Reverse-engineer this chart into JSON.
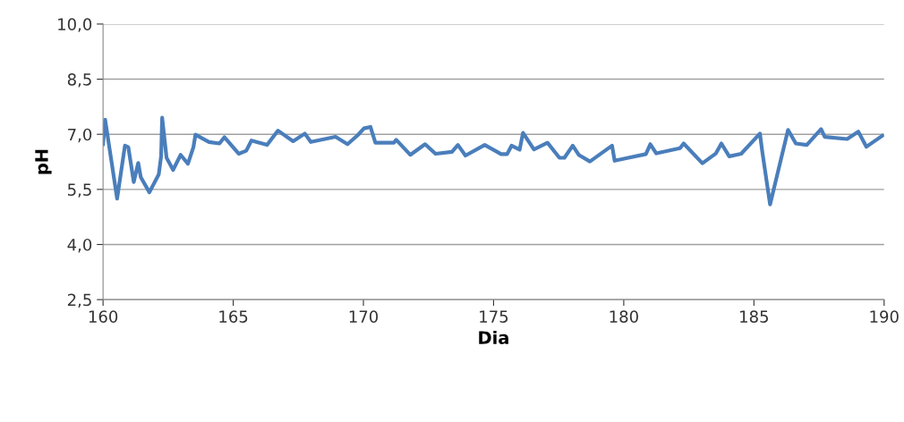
{
  "chart_data": {
    "type": "line",
    "xlabel": "Dia",
    "ylabel": "pH",
    "x": [
      160.0,
      160.08,
      160.54,
      160.84,
      160.97,
      161.18,
      161.35,
      161.45,
      161.78,
      162.14,
      162.23,
      162.27,
      162.44,
      162.69,
      162.98,
      163.26,
      163.47,
      163.55,
      164.07,
      164.47,
      164.66,
      165.21,
      165.5,
      165.7,
      166.3,
      166.72,
      167.3,
      167.75,
      167.98,
      168.93,
      169.39,
      169.79,
      170.02,
      170.27,
      170.46,
      171.17,
      171.26,
      171.8,
      172.37,
      172.77,
      173.4,
      173.63,
      173.92,
      174.66,
      175.29,
      175.52,
      175.69,
      176.0,
      176.13,
      176.55,
      177.07,
      177.53,
      177.72,
      178.04,
      178.27,
      178.7,
      179.55,
      179.65,
      180.05,
      180.85,
      181.02,
      181.25,
      182.16,
      182.3,
      183.02,
      183.54,
      183.75,
      184.05,
      184.51,
      185.23,
      185.32,
      185.62,
      186.31,
      186.61,
      187.03,
      187.58,
      187.72,
      188.58,
      189.01,
      189.32,
      189.93
    ],
    "series": [
      {
        "color": "#4a7ebb",
        "values": [
          6.73,
          7.4,
          5.25,
          6.69,
          6.65,
          5.7,
          6.22,
          5.83,
          5.42,
          5.91,
          6.4,
          7.45,
          6.36,
          6.03,
          6.44,
          6.2,
          6.65,
          6.99,
          6.79,
          6.75,
          6.92,
          6.47,
          6.55,
          6.83,
          6.71,
          7.1,
          6.81,
          7.02,
          6.79,
          6.93,
          6.73,
          6.98,
          7.16,
          7.2,
          6.77,
          6.77,
          6.85,
          6.44,
          6.73,
          6.47,
          6.52,
          6.71,
          6.42,
          6.71,
          6.46,
          6.46,
          6.69,
          6.58,
          7.04,
          6.59,
          6.77,
          6.36,
          6.36,
          6.69,
          6.44,
          6.26,
          6.69,
          6.28,
          6.34,
          6.46,
          6.73,
          6.48,
          6.62,
          6.75,
          6.21,
          6.48,
          6.75,
          6.4,
          6.47,
          7.02,
          6.53,
          5.09,
          7.12,
          6.75,
          6.71,
          7.14,
          6.93,
          6.87,
          7.07,
          6.66,
          6.96
        ]
      }
    ],
    "xlim": [
      160,
      190
    ],
    "xticks": [
      160,
      165,
      170,
      175,
      180,
      185,
      190
    ],
    "ylim": [
      2.5,
      10
    ],
    "yticks": [
      {
        "value": 2.5,
        "label": "2,5"
      },
      {
        "value": 4,
        "label": "4,0"
      },
      {
        "value": 5.5,
        "label": "5,5"
      },
      {
        "value": 7,
        "label": "7,0"
      },
      {
        "value": 8.5,
        "label": "8,5"
      },
      {
        "value": 10,
        "label": "10,0"
      }
    ],
    "grid": "y",
    "marker": "none",
    "line_style": "solid"
  }
}
